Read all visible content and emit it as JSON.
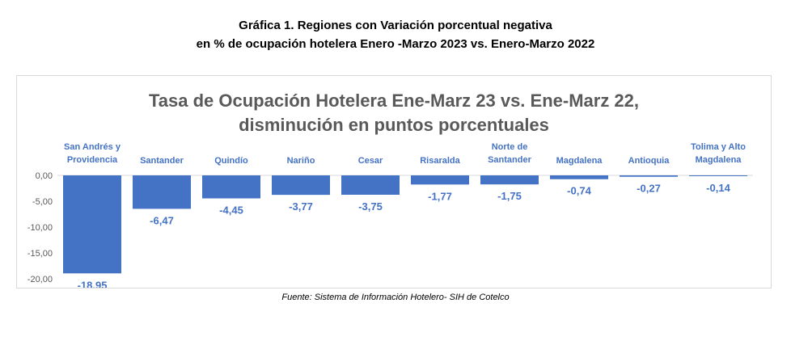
{
  "captions": {
    "line1": "Gráfica 1. Regiones con Variación porcentual negativa",
    "line2": "en % de ocupación hotelera Enero -Marzo 2023 vs. Enero-Marzo 2022"
  },
  "source": "Fuente: Sistema de Información Hotelero- SIH de Cotelco",
  "colors": {
    "bar": "#4472c4",
    "label": "#4472c4",
    "title": "#595959",
    "axis": "#595959"
  },
  "chart_data": {
    "type": "bar",
    "title_lines": [
      "Tasa de Ocupación Hotelera Ene-Marz 23 vs. Ene-Marz 22,",
      "disminución en puntos porcentuales"
    ],
    "categories": [
      [
        "San Andrés y",
        "Providencia"
      ],
      [
        "Santander"
      ],
      [
        "Quindío"
      ],
      [
        "Nariño"
      ],
      [
        "Cesar"
      ],
      [
        "Risaralda"
      ],
      [
        "Norte de",
        "Santander"
      ],
      [
        "Magdalena"
      ],
      [
        "Antioquia"
      ],
      [
        "Tolima y Alto",
        "Magdalena"
      ]
    ],
    "values": [
      -18.95,
      -6.47,
      -4.45,
      -3.77,
      -3.75,
      -1.77,
      -1.75,
      -0.74,
      -0.27,
      -0.14
    ],
    "value_labels": [
      "-18,95",
      "-6,47",
      "-4,45",
      "-3,77",
      "-3,75",
      "-1,77",
      "-1,75",
      "-0,74",
      "-0,27",
      "-0,14"
    ],
    "y_ticks": [
      0,
      -5,
      -10,
      -15,
      -20
    ],
    "y_tick_labels": [
      "0,00",
      "-5,00",
      "-10,00",
      "-15,00",
      "-20,00"
    ],
    "ylim": [
      -20,
      0
    ],
    "grid": false,
    "legend": "none"
  }
}
